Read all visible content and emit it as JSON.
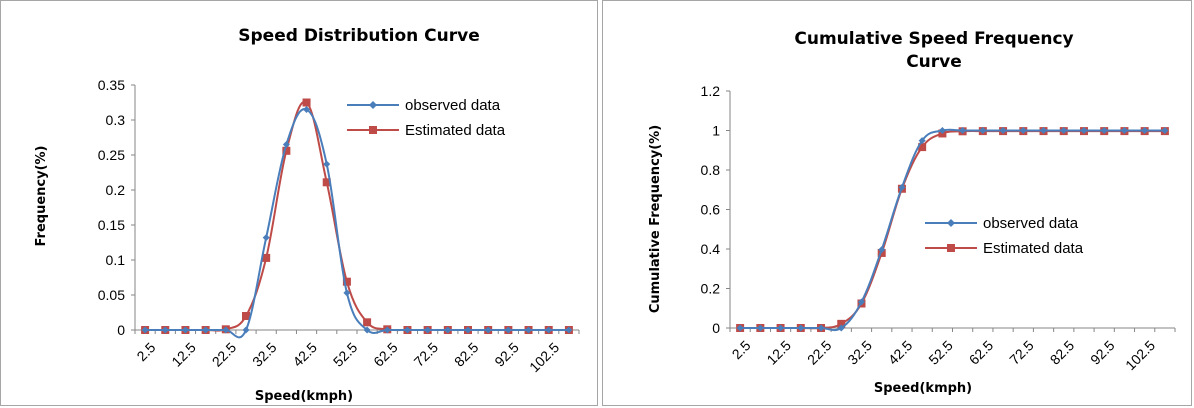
{
  "colors": {
    "observed": "#4a7ebb",
    "estimated": "#be4b48",
    "axis": "#868686"
  },
  "chart_data": [
    {
      "type": "line",
      "title": "Speed Distribution Curve",
      "xlabel": "Speed(kmph)",
      "ylabel": "Frequency(%)",
      "ylim": [
        0,
        0.35
      ],
      "yticks": [
        "0",
        "0.05",
        "0.1",
        "0.15",
        "0.2",
        "0.25",
        "0.3",
        "0.35"
      ],
      "x": [
        2.5,
        7.5,
        12.5,
        17.5,
        22.5,
        27.5,
        32.5,
        37.5,
        42.5,
        47.5,
        52.5,
        57.5,
        62.5,
        67.5,
        72.5,
        77.5,
        82.5,
        87.5,
        92.5,
        97.5,
        102.5,
        107.5
      ],
      "xtick_labels": [
        "2.5",
        "12.5",
        "22.5",
        "32.5",
        "42.5",
        "52.5",
        "62.5",
        "72.5",
        "82.5",
        "92.5",
        "102.5"
      ],
      "series": [
        {
          "name": "observed data",
          "marker": "diamond",
          "values": [
            0,
            0,
            0,
            0,
            0,
            0,
            0.132,
            0.265,
            0.315,
            0.237,
            0.053,
            0,
            0,
            0,
            0,
            0,
            0,
            0,
            0,
            0,
            0,
            0
          ]
        },
        {
          "name": "Estimated data",
          "marker": "square",
          "values": [
            0,
            0,
            0,
            0,
            0.001,
            0.02,
            0.103,
            0.256,
            0.325,
            0.211,
            0.069,
            0.011,
            0.001,
            0,
            0,
            0,
            0,
            0,
            0,
            0,
            0,
            0
          ]
        }
      ],
      "legend": "right",
      "grid": false
    },
    {
      "type": "line",
      "title": "Cumulative Speed Frequency Curve",
      "title_lines": [
        "Cumulative Speed Frequency",
        "Curve"
      ],
      "xlabel": "Speed(kmph)",
      "ylabel": "Cumulative Frequency(%)",
      "ylim": [
        0,
        1.2
      ],
      "yticks": [
        "0",
        "0.2",
        "0.4",
        "0.6",
        "0.8",
        "1",
        "1.2"
      ],
      "x": [
        2.5,
        7.5,
        12.5,
        17.5,
        22.5,
        27.5,
        32.5,
        37.5,
        42.5,
        47.5,
        52.5,
        57.5,
        62.5,
        67.5,
        72.5,
        77.5,
        82.5,
        87.5,
        92.5,
        97.5,
        102.5,
        107.5
      ],
      "xtick_labels": [
        "2.5",
        "12.5",
        "22.5",
        "32.5",
        "42.5",
        "52.5",
        "62.5",
        "72.5",
        "82.5",
        "92.5",
        "102.5"
      ],
      "series": [
        {
          "name": "observed data",
          "marker": "diamond",
          "values": [
            0,
            0,
            0,
            0,
            0,
            0,
            0.132,
            0.397,
            0.712,
            0.949,
            1,
            1,
            1,
            1,
            1,
            1,
            1,
            1,
            1,
            1,
            1,
            1
          ]
        },
        {
          "name": "Estimated data",
          "marker": "square",
          "values": [
            0,
            0,
            0,
            0,
            0,
            0.021,
            0.124,
            0.38,
            0.705,
            0.916,
            0.985,
            0.996,
            0.997,
            0.997,
            0.997,
            0.997,
            0.997,
            0.997,
            0.997,
            0.997,
            0.997,
            0.997
          ]
        }
      ],
      "legend": "right",
      "grid": false
    }
  ]
}
